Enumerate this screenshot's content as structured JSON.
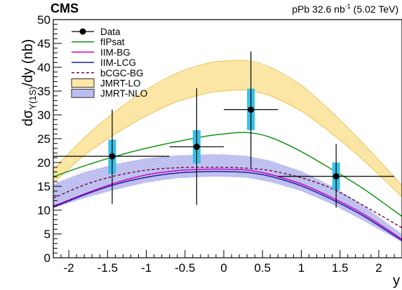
{
  "chart_data": {
    "type": "line",
    "experiment": "CMS",
    "luminosity_text": "pPb 32.6 nb",
    "luminosity_sup": "-1",
    "energy_text": "(5.02 TeV)",
    "xlabel": "y",
    "ylabel_pre": "dσ",
    "ylabel_sub": "Υ(1S)",
    "ylabel_post": "/dy (nb)",
    "xlim": [
      -2.2,
      2.3
    ],
    "ylim": [
      0,
      50
    ],
    "xticks": [
      -2,
      -1.5,
      -1,
      -0.5,
      0,
      0.5,
      1,
      1.5,
      2
    ],
    "xtick_labels": [
      "-2",
      "-1.5",
      "-1",
      "-0.5",
      "0",
      "0.5",
      "1",
      "1.5",
      "2"
    ],
    "yticks": [
      0,
      5,
      10,
      15,
      20,
      25,
      30,
      35,
      40,
      45,
      50
    ],
    "ytick_labels": [
      "0",
      "5",
      "10",
      "15",
      "20",
      "25",
      "30",
      "35",
      "40",
      "45",
      "50"
    ],
    "colors": {
      "data": "#000000",
      "syst_box": "#3cc0e8",
      "fipsat": "#139613",
      "iim_bg": "#cc00cc",
      "iim_lcg": "#1f1f9c",
      "bcgc_bg": "#7a0f4a",
      "jmrt_lo_fill": "#fbe6a6",
      "jmrt_lo_edge": "#e9c456",
      "jmrt_nlo_fill": "#c9cbf4",
      "jmrt_nlo_hatch": "#8d92e0"
    },
    "data_points": {
      "name": "Data",
      "points": [
        {
          "x": -1.44,
          "y": 21.3,
          "x_lo": -2.2,
          "x_hi": -0.7,
          "stat_lo": 11.3,
          "stat_hi": 31.1,
          "syst_lo": 17.6,
          "syst_hi": 24.8
        },
        {
          "x": -0.35,
          "y": 23.3,
          "x_lo": -0.7,
          "x_hi": 0.0,
          "stat_lo": 11.1,
          "stat_hi": 35.6,
          "syst_lo": 19.8,
          "syst_hi": 26.8
        },
        {
          "x": 0.35,
          "y": 31.1,
          "x_lo": 0.0,
          "x_hi": 0.7,
          "stat_lo": 18.9,
          "stat_hi": 43.3,
          "syst_lo": 26.8,
          "syst_hi": 35.5
        },
        {
          "x": 1.45,
          "y": 17.1,
          "x_lo": 0.7,
          "x_hi": 2.2,
          "stat_lo": 10.5,
          "stat_hi": 23.9,
          "syst_lo": 14.2,
          "syst_hi": 20.0
        }
      ]
    },
    "x": [
      -2.2,
      -1.8,
      -1.4,
      -1.0,
      -0.6,
      -0.2,
      0.0,
      0.3,
      0.6,
      1.0,
      1.4,
      1.8,
      2.3
    ],
    "series": [
      {
        "name": "fIPsat",
        "style": "solid",
        "values": [
          17.0,
          19.3,
          21.3,
          23.0,
          24.4,
          25.6,
          26.0,
          26.3,
          25.3,
          22.3,
          18.5,
          14.5,
          8.7
        ]
      },
      {
        "name": "IIM-BG",
        "style": "solid",
        "values": [
          10.8,
          13.4,
          15.7,
          17.4,
          18.3,
          18.6,
          18.6,
          18.4,
          17.5,
          15.5,
          12.6,
          9.2,
          3.9
        ]
      },
      {
        "name": "IIM-LCG",
        "style": "solid",
        "values": [
          10.6,
          13.2,
          15.4,
          16.9,
          17.8,
          18.1,
          18.1,
          17.9,
          17.1,
          15.1,
          12.2,
          8.8,
          3.6
        ]
      },
      {
        "name": "bCGC-BG",
        "style": "dashed",
        "values": [
          12.5,
          15.3,
          17.2,
          18.4,
          18.9,
          19.0,
          19.0,
          18.8,
          18.3,
          16.8,
          14.5,
          11.0,
          6.3
        ]
      }
    ],
    "bands": [
      {
        "name": "JMRT-LO",
        "lower": [
          15.7,
          21.5,
          26.0,
          29.8,
          32.8,
          34.6,
          35.0,
          35.2,
          34.0,
          30.8,
          26.0,
          20.5,
          12.8
        ],
        "upper": [
          18.5,
          25.2,
          30.7,
          35.3,
          38.8,
          40.9,
          41.3,
          41.4,
          40.0,
          36.2,
          30.5,
          24.0,
          15.2
        ]
      },
      {
        "name": "JMRT-NLO",
        "lower": [
          10.5,
          12.5,
          14.3,
          15.8,
          16.7,
          17.0,
          17.0,
          16.8,
          15.9,
          14.0,
          11.2,
          7.8,
          3.3
        ],
        "upper": [
          15.5,
          18.0,
          19.7,
          20.9,
          21.5,
          21.7,
          21.7,
          21.4,
          20.4,
          18.2,
          15.0,
          11.0,
          5.0
        ]
      }
    ],
    "legend": {
      "placement": "top-left",
      "entries": [
        {
          "label": "Data",
          "kind": "marker"
        },
        {
          "label": "fIPsat",
          "kind": "line",
          "color_key": "fipsat"
        },
        {
          "label": "IIM-BG",
          "kind": "line",
          "color_key": "iim_bg"
        },
        {
          "label": "IIM-LCG",
          "kind": "line",
          "color_key": "iim_lcg"
        },
        {
          "label": "bCGC-BG",
          "kind": "dashed",
          "color_key": "bcgc_bg"
        },
        {
          "label": "JMRT-LO",
          "kind": "fill",
          "color_key": "jmrt_lo_fill"
        },
        {
          "label": "JMRT-NLO",
          "kind": "hatch",
          "color_key": "jmrt_nlo_fill"
        }
      ]
    }
  }
}
